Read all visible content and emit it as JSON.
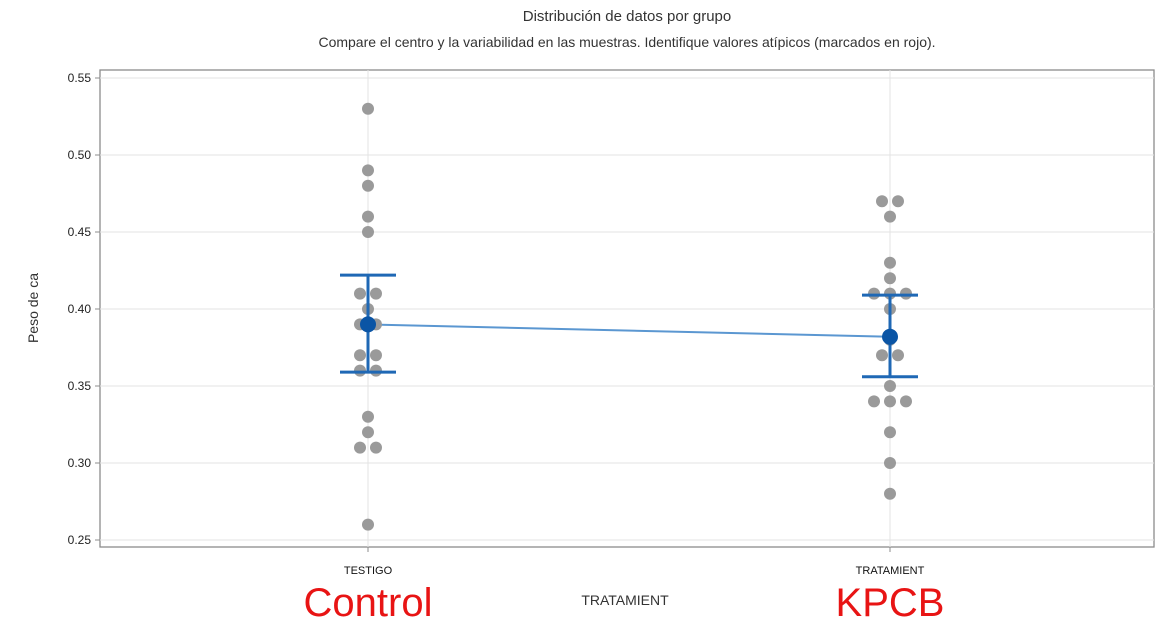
{
  "chart_data": {
    "type": "scatter",
    "title": "Distribución de datos por grupo",
    "subtitle": "Compare el centro y la variabilidad en las muestras. Identifique valores atípicos (marcados en rojo).",
    "xlabel": "TRATAMIENT",
    "ylabel": "Peso de ca",
    "categories": [
      "TESTIGO",
      "TRATAMIENT"
    ],
    "ylim": [
      0.25,
      0.55
    ],
    "yticks": [
      "0.25",
      "0.30",
      "0.35",
      "0.40",
      "0.45",
      "0.50",
      "0.55"
    ],
    "grid": true,
    "colors": {
      "points": "#9a9a9a",
      "mean": "#0b55a5",
      "interval": "#1f68b5",
      "connector": "#5b97d1",
      "annotation": "#e81414"
    },
    "groups": [
      {
        "category": "TESTIGO",
        "mean": 0.39,
        "interval": [
          0.359,
          0.422
        ],
        "values": [
          0.53,
          0.49,
          0.48,
          0.46,
          0.45,
          0.41,
          0.41,
          0.4,
          0.39,
          0.39,
          0.37,
          0.37,
          0.36,
          0.36,
          0.33,
          0.32,
          0.31,
          0.31,
          0.26
        ]
      },
      {
        "category": "TRATAMIENT",
        "mean": 0.382,
        "interval": [
          0.356,
          0.409
        ],
        "values": [
          0.47,
          0.47,
          0.46,
          0.43,
          0.42,
          0.41,
          0.41,
          0.41,
          0.4,
          0.38,
          0.37,
          0.37,
          0.35,
          0.34,
          0.34,
          0.34,
          0.32,
          0.3,
          0.28
        ]
      }
    ]
  },
  "annotations": {
    "left": "Control",
    "right": "KPCB"
  }
}
